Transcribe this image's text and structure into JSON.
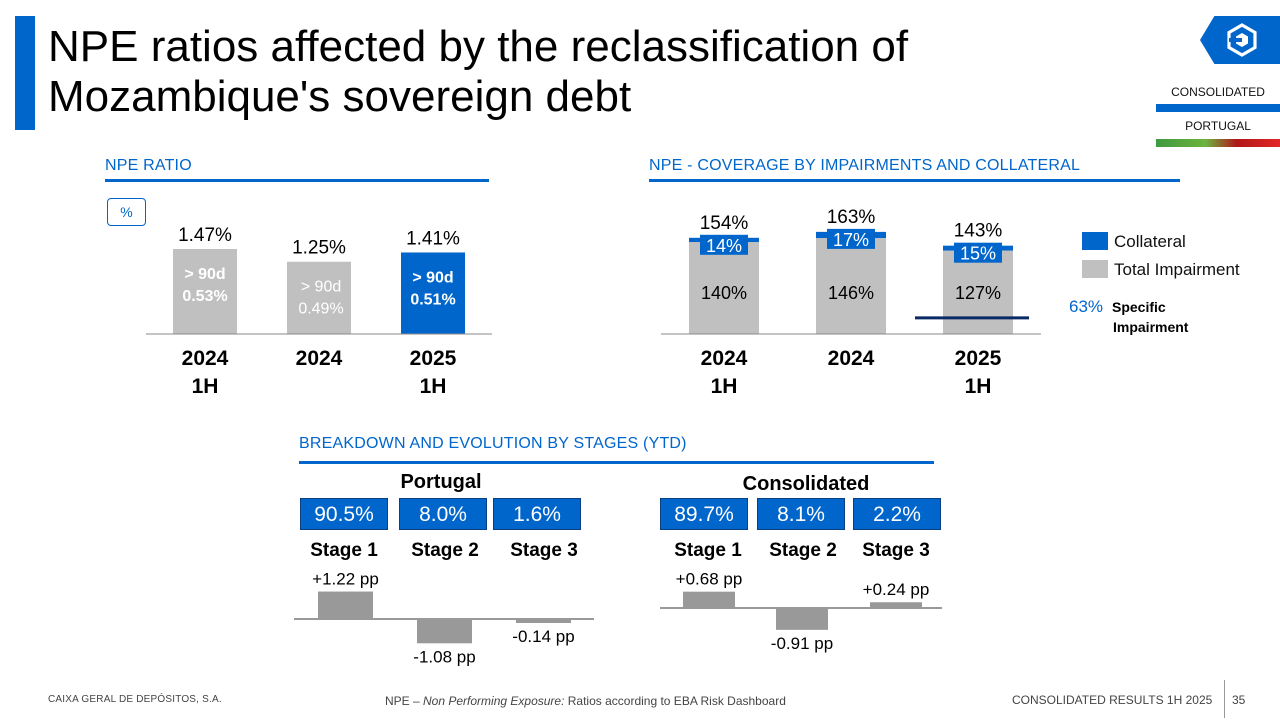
{
  "header": {
    "title": "NPE ratios affected by the reclassification of Mozambique's sovereign debt",
    "scope_consolidated": "CONSOLIDATED",
    "scope_portugal": "PORTUGAL",
    "logo_icon": "cgd-logo-icon"
  },
  "colors": {
    "accent": "#0066cc",
    "bar_gray": "#c0c0c0",
    "evolution_gray": "#999999",
    "specific_line": "#0a2a66"
  },
  "sections": {
    "npe_ratio": "NPE RATIO",
    "npe_coverage": "NPE - COVERAGE BY IMPAIRMENTS AND COLLATERAL",
    "stages": "BREAKDOWN AND EVOLUTION BY STAGES (YTD)"
  },
  "npe_ratio_unit": "%",
  "chart_data": [
    {
      "type": "bar",
      "id": "npe-ratio",
      "categories": [
        "2024\n1H",
        "2024",
        "2025\n1H"
      ],
      "values": [
        1.47,
        1.25,
        1.41
      ],
      "value_labels": [
        "1.47%",
        "1.25%",
        "1.41%"
      ],
      "inner_label_top": [
        "> 90d",
        "> 90d",
        "> 90d"
      ],
      "inner_values": [
        0.53,
        0.49,
        0.51
      ],
      "inner_labels": [
        "0.53%",
        "0.49%",
        "0.51%"
      ],
      "highlight_index": 2,
      "ylim": [
        0,
        1.5
      ]
    },
    {
      "type": "bar",
      "id": "npe-coverage",
      "categories": [
        "2024\n1H",
        "2024",
        "2025\n1H"
      ],
      "series": [
        {
          "name": "Total Impairment",
          "values": [
            140,
            146,
            127
          ],
          "labels": [
            "140%",
            "146%",
            "127%"
          ]
        },
        {
          "name": "Collateral",
          "values": [
            14,
            17,
            15
          ],
          "labels": [
            "14%",
            "17%",
            "15%"
          ]
        }
      ],
      "totals": [
        "154%",
        "163%",
        "143%"
      ],
      "specific_impairment": {
        "value": 63,
        "label": "63%",
        "text_1": "Specific",
        "text_2": "Impairment",
        "category_index": 2
      },
      "legend": [
        "Collateral",
        "Total Impairment"
      ],
      "legend_position": "right",
      "ylim": [
        0,
        170
      ]
    },
    {
      "type": "bar",
      "id": "stages-portugal",
      "title": "Portugal",
      "categories": [
        "Stage 1",
        "Stage 2",
        "Stage 3"
      ],
      "shares": [
        "90.5%",
        "8.0%",
        "1.6%"
      ],
      "values": [
        1.22,
        -1.08,
        -0.14
      ],
      "value_labels": [
        "+1.22 pp",
        "-1.08 pp",
        "-0.14 pp"
      ]
    },
    {
      "type": "bar",
      "id": "stages-consolidated",
      "title": "Consolidated",
      "categories": [
        "Stage 1",
        "Stage 2",
        "Stage 3"
      ],
      "shares": [
        "89.7%",
        "8.1%",
        "2.2%"
      ],
      "values": [
        0.68,
        -0.91,
        0.24
      ],
      "value_labels": [
        "+0.68 pp",
        "-0.91 pp",
        "+0.24 pp"
      ]
    }
  ],
  "footer": {
    "company": "CAIXA GERAL DE DEPÓSITOS, S.A.",
    "note_prefix": "NPE – ",
    "note_italic": "Non Performing Exposure:",
    "note_suffix": " Ratios according to EBA Risk Dashboard",
    "results": "CONSOLIDATED RESULTS 1H 2025",
    "page": "35"
  }
}
